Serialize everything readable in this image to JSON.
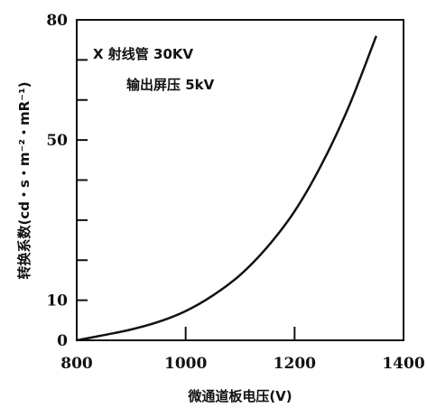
{
  "chart_data": {
    "type": "line",
    "xlabel": "微通道板电压(V)",
    "ylabel": "转换系数(cd・s・m⁻²・mR⁻¹)",
    "xlim": [
      800,
      1400
    ],
    "ylim": [
      0,
      80
    ],
    "x_ticks": [
      "800",
      "1000",
      "1200",
      "1400"
    ],
    "y_ticks": [
      "0",
      "10",
      "50",
      "80"
    ],
    "annotations": [
      "X 射线管 30KV",
      "输出屏压 5kV"
    ],
    "series": [
      {
        "x": [
          800,
          850,
          900,
          950,
          1000,
          1050,
          1100,
          1150,
          1200,
          1250,
          1300,
          1350
        ],
        "y": [
          0,
          1.3,
          2.7,
          4.6,
          7.3,
          11.2,
          16.3,
          23.3,
          32.2,
          44.0,
          58.5,
          76.0
        ]
      }
    ]
  }
}
